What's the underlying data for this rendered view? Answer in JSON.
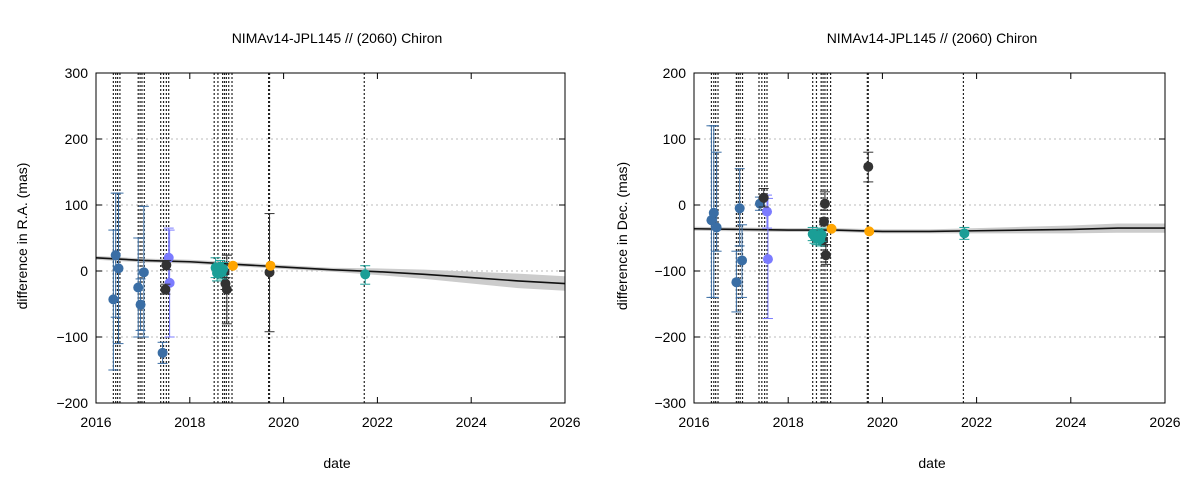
{
  "chart_data": [
    {
      "type": "scatter",
      "title": "NIMAv14-JPL145 // (2060) Chiron",
      "xlabel": "date",
      "ylabel": "difference in R.A. (mas)",
      "xlim": [
        2016,
        2026
      ],
      "ylim": [
        -200,
        300
      ],
      "xticks": [
        2016,
        2018,
        2020,
        2022,
        2024,
        2026
      ],
      "yticks": [
        -200,
        -100,
        0,
        100,
        200,
        300
      ],
      "grid": true,
      "colors": {
        "blue": "#3a6ea5",
        "violet": "#7b7bff",
        "dark": "#333333",
        "teal": "#1a9e96",
        "orange": "#ffa500",
        "band": "#cccccc",
        "line": "#111111"
      },
      "model": {
        "x": [
          2016.0,
          2017.0,
          2018.0,
          2019.0,
          2020.0,
          2021.0,
          2022.0,
          2023.0,
          2024.0,
          2025.0,
          2026.0
        ],
        "y": [
          20,
          16,
          14,
          10,
          6,
          2,
          -1,
          -5,
          -10,
          -15,
          -19
        ],
        "band": [
          3,
          3,
          3,
          3,
          3,
          3,
          5,
          7,
          9,
          11,
          11
        ]
      },
      "vlines": [
        2016.37,
        2016.42,
        2016.46,
        2016.51,
        2016.9,
        2016.94,
        2016.98,
        2017.03,
        2017.38,
        2017.44,
        2017.5,
        2017.55,
        2018.52,
        2018.6,
        2018.7,
        2018.74,
        2018.78,
        2018.83,
        2018.9,
        2019.68,
        2019.7,
        2021.72
      ],
      "series": [
        {
          "color": "blue",
          "points": [
            {
              "x": 2016.37,
              "y": -43,
              "lo": -150,
              "hi": 62
            },
            {
              "x": 2016.42,
              "y": 24,
              "lo": -70,
              "hi": 118
            },
            {
              "x": 2016.48,
              "y": 4,
              "lo": -110,
              "hi": 118
            },
            {
              "x": 2016.9,
              "y": -25,
              "lo": -100,
              "hi": 50
            },
            {
              "x": 2016.95,
              "y": -51,
              "lo": -90,
              "hi": -12
            },
            {
              "x": 2017.02,
              "y": -2,
              "lo": -100,
              "hi": 98
            },
            {
              "x": 2017.42,
              "y": -124,
              "lo": -140,
              "hi": -108
            }
          ]
        },
        {
          "color": "violet",
          "points": [
            {
              "x": 2017.55,
              "y": 20,
              "lo": -22,
              "hi": 65
            },
            {
              "x": 2017.57,
              "y": -18,
              "lo": -100,
              "hi": 62
            }
          ]
        },
        {
          "color": "dark",
          "points": [
            {
              "x": 2017.48,
              "y": -28,
              "lo": -35,
              "hi": -20
            },
            {
              "x": 2017.5,
              "y": 9,
              "lo": 2,
              "hi": 16
            },
            {
              "x": 2018.74,
              "y": -1,
              "lo": -10,
              "hi": 8
            },
            {
              "x": 2018.76,
              "y": -19,
              "lo": -28,
              "hi": -10
            },
            {
              "x": 2018.79,
              "y": -28,
              "lo": -80,
              "hi": 24
            },
            {
              "x": 2019.7,
              "y": -2,
              "lo": -92,
              "hi": 87
            }
          ]
        },
        {
          "color": "teal",
          "points": [
            {
              "x": 2018.55,
              "y": 5,
              "lo": -10,
              "hi": 20
            },
            {
              "x": 2018.58,
              "y": -3,
              "lo": -15,
              "hi": 10
            },
            {
              "x": 2018.62,
              "y": 2,
              "lo": -8,
              "hi": 12
            },
            {
              "x": 2018.65,
              "y": 6,
              "lo": -4,
              "hi": 16
            },
            {
              "x": 2018.68,
              "y": -2,
              "lo": -12,
              "hi": 8
            },
            {
              "x": 2018.71,
              "y": 3,
              "lo": -7,
              "hi": 13
            },
            {
              "x": 2021.74,
              "y": -5,
              "lo": -20,
              "hi": 8
            }
          ]
        },
        {
          "color": "orange",
          "points": [
            {
              "x": 2018.92,
              "y": 8
            },
            {
              "x": 2019.72,
              "y": 8
            }
          ]
        }
      ]
    },
    {
      "type": "scatter",
      "title": "NIMAv14-JPL145 // (2060) Chiron",
      "xlabel": "date",
      "ylabel": "difference in Dec. (mas)",
      "xlim": [
        2016,
        2026
      ],
      "ylim": [
        -300,
        200
      ],
      "xticks": [
        2016,
        2018,
        2020,
        2022,
        2024,
        2026
      ],
      "yticks": [
        -300,
        -200,
        -100,
        0,
        100,
        200
      ],
      "grid": true,
      "colors": {
        "blue": "#3a6ea5",
        "violet": "#7b7bff",
        "dark": "#333333",
        "teal": "#1a9e96",
        "orange": "#ffa500",
        "band": "#cccccc",
        "line": "#111111"
      },
      "model": {
        "x": [
          2016.0,
          2017.0,
          2018.0,
          2019.0,
          2020.0,
          2021.0,
          2022.0,
          2023.0,
          2024.0,
          2025.0,
          2026.0
        ],
        "y": [
          -36,
          -37,
          -38,
          -38,
          -40,
          -40,
          -39,
          -38,
          -37,
          -35,
          -35
        ],
        "band": [
          3,
          3,
          3,
          3,
          3,
          3,
          4,
          5,
          6,
          7,
          7
        ]
      },
      "vlines": [
        2016.37,
        2016.42,
        2016.46,
        2016.51,
        2016.9,
        2016.94,
        2016.98,
        2017.03,
        2017.38,
        2017.44,
        2017.5,
        2017.55,
        2018.52,
        2018.6,
        2018.7,
        2018.74,
        2018.78,
        2018.83,
        2018.9,
        2019.68,
        2019.7,
        2021.72
      ],
      "series": [
        {
          "color": "blue",
          "points": [
            {
              "x": 2016.37,
              "y": -23,
              "lo": -140,
              "hi": 120
            },
            {
              "x": 2016.42,
              "y": -12,
              "lo": -140,
              "hi": 120
            },
            {
              "x": 2016.48,
              "y": -34,
              "lo": -70,
              "hi": 80
            },
            {
              "x": 2016.9,
              "y": -117,
              "lo": -162,
              "hi": -70
            },
            {
              "x": 2016.97,
              "y": -5,
              "lo": -62,
              "hi": 55
            },
            {
              "x": 2017.02,
              "y": -84,
              "lo": -140,
              "hi": -30
            },
            {
              "x": 2017.4,
              "y": 2,
              "lo": -8,
              "hi": 12
            }
          ]
        },
        {
          "color": "violet",
          "points": [
            {
              "x": 2017.55,
              "y": -10,
              "lo": -35,
              "hi": 15
            },
            {
              "x": 2017.57,
              "y": -82,
              "lo": -172,
              "hi": 10
            }
          ]
        },
        {
          "color": "dark",
          "points": [
            {
              "x": 2017.48,
              "y": 11,
              "lo": -3,
              "hi": 25
            },
            {
              "x": 2018.74,
              "y": -53,
              "lo": -60,
              "hi": -46
            },
            {
              "x": 2018.76,
              "y": -25,
              "lo": -30,
              "hi": -20
            },
            {
              "x": 2018.78,
              "y": 2,
              "lo": -8,
              "hi": 20
            },
            {
              "x": 2018.8,
              "y": -76,
              "lo": -90,
              "hi": -60
            },
            {
              "x": 2019.7,
              "y": 58,
              "lo": 35,
              "hi": 80
            }
          ]
        },
        {
          "color": "teal",
          "points": [
            {
              "x": 2018.52,
              "y": -44,
              "lo": -54,
              "hi": -34
            },
            {
              "x": 2018.56,
              "y": -48,
              "lo": -58,
              "hi": -38
            },
            {
              "x": 2018.6,
              "y": -50,
              "lo": -60,
              "hi": -40
            },
            {
              "x": 2018.64,
              "y": -47,
              "lo": -57,
              "hi": -37
            },
            {
              "x": 2018.68,
              "y": -52,
              "lo": -62,
              "hi": -42
            },
            {
              "x": 2018.71,
              "y": -45,
              "lo": -55,
              "hi": -35
            },
            {
              "x": 2021.74,
              "y": -43,
              "lo": -52,
              "hi": -34
            }
          ]
        },
        {
          "color": "orange",
          "points": [
            {
              "x": 2018.92,
              "y": -36
            },
            {
              "x": 2019.72,
              "y": -40
            }
          ]
        }
      ]
    }
  ]
}
